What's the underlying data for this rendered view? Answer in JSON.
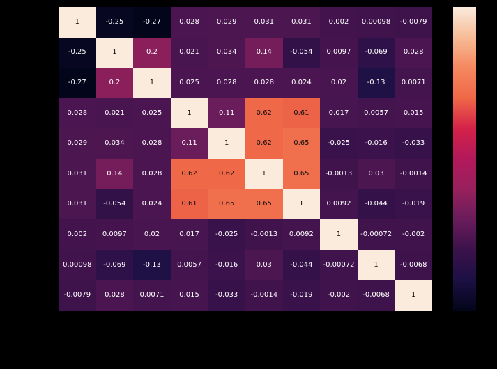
{
  "chart_data": {
    "type": "heatmap",
    "title": "",
    "n_rows": 10,
    "n_cols": 10,
    "cell_labels": [
      [
        "1",
        "-0.25",
        "-0.27",
        "0.028",
        "0.029",
        "0.031",
        "0.031",
        "0.002",
        "0.00098",
        "-0.0079"
      ],
      [
        "-0.25",
        "1",
        "0.2",
        "0.021",
        "0.034",
        "0.14",
        "-0.054",
        "0.0097",
        "-0.069",
        "0.028"
      ],
      [
        "-0.27",
        "0.2",
        "1",
        "0.025",
        "0.028",
        "0.028",
        "0.024",
        "0.02",
        "-0.13",
        "0.0071"
      ],
      [
        "0.028",
        "0.021",
        "0.025",
        "1",
        "0.11",
        "0.62",
        "0.61",
        "0.017",
        "0.0057",
        "0.015"
      ],
      [
        "0.029",
        "0.034",
        "0.028",
        "0.11",
        "1",
        "0.62",
        "0.65",
        "-0.025",
        "-0.016",
        "-0.033"
      ],
      [
        "0.031",
        "0.14",
        "0.028",
        "0.62",
        "0.62",
        "1",
        "0.65",
        "-0.0013",
        "0.03",
        "-0.0014"
      ],
      [
        "0.031",
        "-0.054",
        "0.024",
        "0.61",
        "0.65",
        "0.65",
        "1",
        "0.0092",
        "-0.044",
        "-0.019"
      ],
      [
        "0.002",
        "0.0097",
        "0.02",
        "0.017",
        "-0.025",
        "-0.0013",
        "0.0092",
        "1",
        "-0.00072",
        "-0.002"
      ],
      [
        "0.00098",
        "-0.069",
        "-0.13",
        "0.0057",
        "-0.016",
        "0.03",
        "-0.044",
        "-0.00072",
        "1",
        "-0.0068"
      ],
      [
        "-0.0079",
        "0.028",
        "0.0071",
        "0.015",
        "-0.033",
        "-0.0014",
        "-0.019",
        "-0.002",
        "-0.0068",
        "1"
      ]
    ],
    "vmin": -0.27,
    "vmax": 1,
    "colormap": "rocket",
    "colormap_stops": [
      [
        0.0,
        "#03051A"
      ],
      [
        0.1,
        "#1C1044"
      ],
      [
        0.2,
        "#3B124B"
      ],
      [
        0.3,
        "#6A1C5B"
      ],
      [
        0.4,
        "#98205D"
      ],
      [
        0.5,
        "#B2195B"
      ],
      [
        0.6,
        "#D42249"
      ],
      [
        0.7,
        "#EF6847"
      ],
      [
        0.8,
        "#F58860"
      ],
      [
        0.9,
        "#F7BC96"
      ],
      [
        1.0,
        "#FAEBDD"
      ]
    ],
    "background_color": "#000000",
    "annotation_text_color_light": "#ffffff",
    "annotation_text_color_dark": "#0e0e0e",
    "grid": false,
    "axis_tick_labels_visible": false,
    "colorbar_position": "right"
  }
}
